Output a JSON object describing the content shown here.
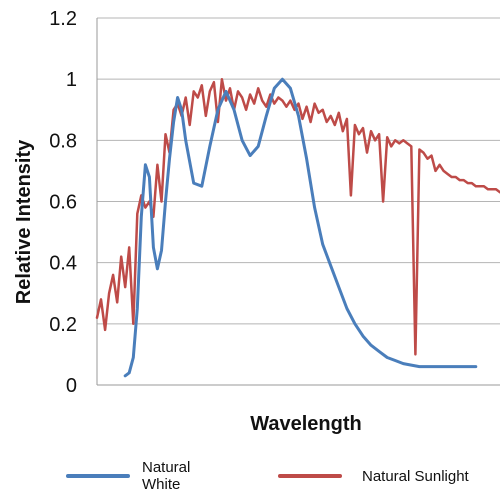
{
  "chart_data": {
    "type": "line",
    "title": "",
    "xlabel": "Wavelength",
    "ylabel": "Relative Intensity",
    "ylim": [
      0,
      1.2
    ],
    "xlim": [
      0,
      100
    ],
    "x_ticks_shown": false,
    "y_ticks": [
      0,
      0.2,
      0.4,
      0.6,
      0.8,
      1,
      1.2
    ],
    "y_tick_labels": [
      "0",
      "0.2",
      "0.4",
      "0.6",
      "0.8",
      "1",
      "1.2"
    ],
    "grid": "horizontal",
    "legend_position": "bottom",
    "series": [
      {
        "name": "Natural White",
        "color": "#4a7ebb",
        "x": [
          7,
          8,
          9,
          10,
          11,
          12,
          13,
          14,
          15,
          16,
          17,
          18,
          19,
          20,
          21,
          22,
          24,
          26,
          28,
          30,
          32,
          34,
          36,
          38,
          40,
          42,
          44,
          46,
          48,
          50,
          52,
          54,
          56,
          58,
          60,
          62,
          64,
          66,
          68,
          70,
          72,
          74,
          76,
          78,
          80,
          82,
          84,
          86,
          88,
          90,
          92,
          94
        ],
        "values": [
          0.03,
          0.04,
          0.09,
          0.25,
          0.55,
          0.72,
          0.68,
          0.45,
          0.38,
          0.44,
          0.6,
          0.74,
          0.86,
          0.94,
          0.9,
          0.8,
          0.66,
          0.65,
          0.78,
          0.9,
          0.96,
          0.9,
          0.8,
          0.75,
          0.78,
          0.88,
          0.97,
          1.0,
          0.97,
          0.88,
          0.74,
          0.58,
          0.46,
          0.39,
          0.32,
          0.25,
          0.2,
          0.16,
          0.13,
          0.11,
          0.09,
          0.08,
          0.07,
          0.065,
          0.06,
          0.06,
          0.06,
          0.06,
          0.06,
          0.06,
          0.06,
          0.06
        ]
      },
      {
        "name": "Natural Sunlight",
        "color": "#be4b48",
        "x": [
          0,
          1,
          2,
          3,
          4,
          5,
          6,
          7,
          8,
          9,
          10,
          11,
          12,
          13,
          14,
          15,
          16,
          17,
          18,
          19,
          20,
          21,
          22,
          23,
          24,
          25,
          26,
          27,
          28,
          29,
          30,
          31,
          32,
          33,
          34,
          35,
          36,
          37,
          38,
          39,
          40,
          41,
          42,
          43,
          44,
          45,
          46,
          47,
          48,
          49,
          50,
          51,
          52,
          53,
          54,
          55,
          56,
          57,
          58,
          59,
          60,
          61,
          62,
          63,
          64,
          65,
          66,
          67,
          68,
          69,
          70,
          71,
          72,
          73,
          74,
          75,
          76,
          77,
          78,
          79,
          80,
          81,
          82,
          83,
          84,
          85,
          86,
          87,
          88,
          89,
          90,
          91,
          92,
          93,
          94,
          95,
          96,
          97,
          98,
          99,
          100
        ],
        "values": [
          0.22,
          0.28,
          0.18,
          0.3,
          0.36,
          0.27,
          0.42,
          0.32,
          0.45,
          0.2,
          0.56,
          0.62,
          0.58,
          0.6,
          0.55,
          0.72,
          0.6,
          0.82,
          0.76,
          0.9,
          0.92,
          0.88,
          0.94,
          0.85,
          0.96,
          0.94,
          0.98,
          0.88,
          0.96,
          0.99,
          0.86,
          1.0,
          0.93,
          0.97,
          0.9,
          0.96,
          0.94,
          0.9,
          0.95,
          0.92,
          0.97,
          0.93,
          0.91,
          0.95,
          0.92,
          0.94,
          0.93,
          0.91,
          0.93,
          0.9,
          0.92,
          0.87,
          0.91,
          0.86,
          0.92,
          0.89,
          0.9,
          0.86,
          0.88,
          0.85,
          0.89,
          0.83,
          0.87,
          0.62,
          0.85,
          0.82,
          0.84,
          0.76,
          0.83,
          0.8,
          0.82,
          0.6,
          0.81,
          0.78,
          0.8,
          0.79,
          0.8,
          0.79,
          0.78,
          0.1,
          0.77,
          0.76,
          0.74,
          0.75,
          0.7,
          0.72,
          0.7,
          0.69,
          0.68,
          0.68,
          0.67,
          0.67,
          0.66,
          0.66,
          0.65,
          0.65,
          0.65,
          0.64,
          0.64,
          0.64,
          0.63
        ]
      }
    ]
  }
}
